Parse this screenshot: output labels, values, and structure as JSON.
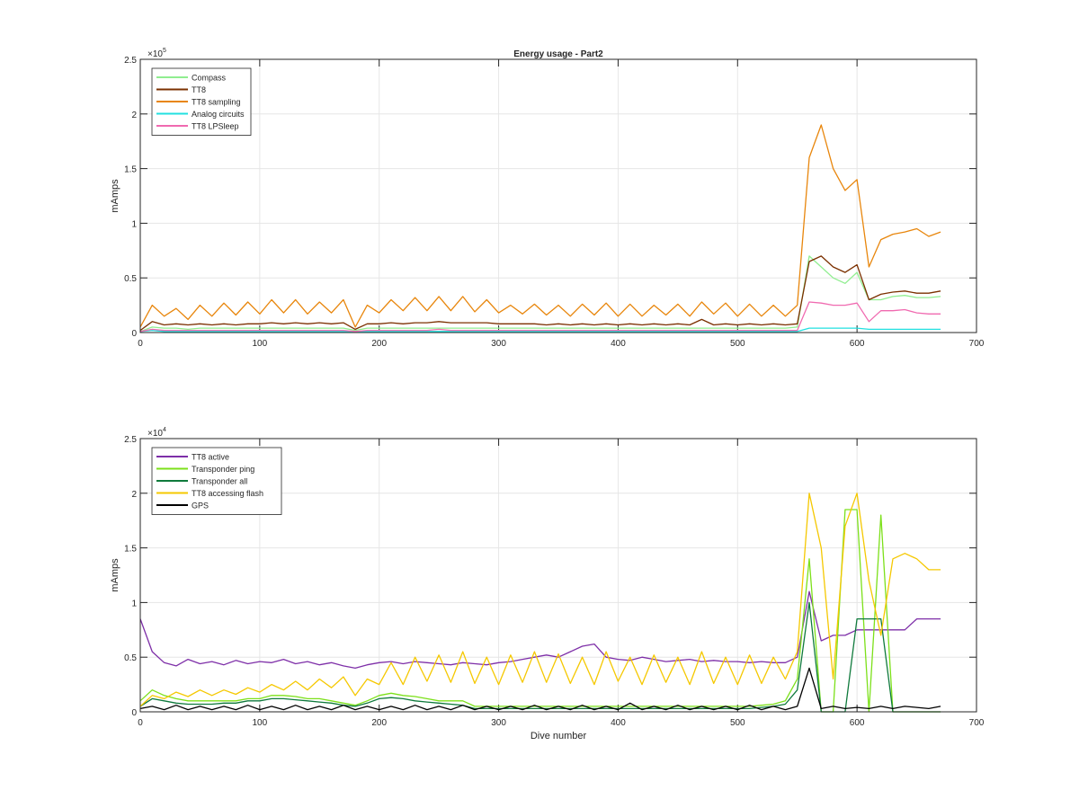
{
  "chart_data": [
    {
      "type": "line",
      "title": "Energy usage - Part2",
      "xlabel": "",
      "ylabel": "mAmps",
      "y_exponent_label": "×10",
      "y_exponent": "5",
      "xlim": [
        0,
        700
      ],
      "ylim": [
        0,
        2.5
      ],
      "xticks": [
        "0",
        "100",
        "200",
        "300",
        "400",
        "500",
        "600",
        "700"
      ],
      "yticks": [
        "0",
        "0.5",
        "1",
        "1.5",
        "2",
        "2.5"
      ],
      "grid": true,
      "legend_position": "top-left",
      "x": [
        0,
        10,
        20,
        30,
        40,
        50,
        60,
        70,
        80,
        90,
        100,
        110,
        120,
        130,
        140,
        150,
        160,
        170,
        180,
        190,
        200,
        210,
        220,
        230,
        240,
        250,
        260,
        270,
        280,
        290,
        300,
        310,
        320,
        330,
        340,
        350,
        360,
        370,
        380,
        390,
        400,
        410,
        420,
        430,
        440,
        450,
        460,
        470,
        480,
        490,
        500,
        510,
        520,
        530,
        540,
        550,
        560,
        570,
        580,
        590,
        600,
        610,
        620,
        630,
        640,
        650,
        660,
        670
      ],
      "series": [
        {
          "name": "Compass",
          "color": "#90ee90",
          "values": [
            0.01,
            0.05,
            0.04,
            0.04,
            0.03,
            0.04,
            0.04,
            0.04,
            0.04,
            0.04,
            0.04,
            0.04,
            0.04,
            0.04,
            0.04,
            0.04,
            0.04,
            0.04,
            0.02,
            0.04,
            0.04,
            0.04,
            0.04,
            0.04,
            0.04,
            0.04,
            0.04,
            0.04,
            0.04,
            0.04,
            0.04,
            0.04,
            0.04,
            0.04,
            0.04,
            0.04,
            0.04,
            0.04,
            0.04,
            0.04,
            0.04,
            0.04,
            0.04,
            0.04,
            0.04,
            0.04,
            0.04,
            0.04,
            0.04,
            0.04,
            0.04,
            0.04,
            0.04,
            0.04,
            0.04,
            0.05,
            0.7,
            0.6,
            0.5,
            0.45,
            0.55,
            0.3,
            0.3,
            0.33,
            0.34,
            0.32,
            0.32,
            0.33
          ]
        },
        {
          "name": "TT8",
          "color": "#7b3000",
          "values": [
            0.02,
            0.1,
            0.07,
            0.08,
            0.07,
            0.08,
            0.07,
            0.08,
            0.07,
            0.08,
            0.08,
            0.09,
            0.08,
            0.09,
            0.08,
            0.09,
            0.08,
            0.09,
            0.03,
            0.08,
            0.08,
            0.09,
            0.08,
            0.09,
            0.09,
            0.1,
            0.09,
            0.09,
            0.09,
            0.09,
            0.08,
            0.08,
            0.08,
            0.08,
            0.07,
            0.08,
            0.07,
            0.08,
            0.07,
            0.08,
            0.07,
            0.08,
            0.07,
            0.08,
            0.07,
            0.08,
            0.07,
            0.12,
            0.07,
            0.08,
            0.07,
            0.08,
            0.07,
            0.08,
            0.07,
            0.08,
            0.65,
            0.7,
            0.6,
            0.55,
            0.62,
            0.3,
            0.35,
            0.37,
            0.38,
            0.36,
            0.36,
            0.38
          ]
        },
        {
          "name": "TT8 sampling",
          "color": "#e8860c",
          "values": [
            0.05,
            0.25,
            0.15,
            0.22,
            0.12,
            0.25,
            0.15,
            0.27,
            0.16,
            0.28,
            0.17,
            0.3,
            0.18,
            0.3,
            0.17,
            0.28,
            0.18,
            0.3,
            0.05,
            0.25,
            0.18,
            0.3,
            0.2,
            0.32,
            0.2,
            0.33,
            0.2,
            0.33,
            0.19,
            0.3,
            0.18,
            0.25,
            0.17,
            0.26,
            0.16,
            0.25,
            0.15,
            0.26,
            0.16,
            0.27,
            0.15,
            0.26,
            0.15,
            0.25,
            0.16,
            0.26,
            0.15,
            0.28,
            0.17,
            0.27,
            0.15,
            0.26,
            0.15,
            0.25,
            0.15,
            0.25,
            1.6,
            1.9,
            1.5,
            1.3,
            1.4,
            0.6,
            0.85,
            0.9,
            0.92,
            0.95,
            0.88,
            0.92
          ]
        },
        {
          "name": "Analog circuits",
          "color": "#22e0e0",
          "values": [
            0.01,
            0.02,
            0.01,
            0.01,
            0.01,
            0.01,
            0.01,
            0.01,
            0.01,
            0.01,
            0.01,
            0.01,
            0.01,
            0.01,
            0.01,
            0.01,
            0.01,
            0.01,
            0.01,
            0.01,
            0.01,
            0.01,
            0.01,
            0.01,
            0.01,
            0.01,
            0.01,
            0.01,
            0.01,
            0.01,
            0.01,
            0.01,
            0.01,
            0.01,
            0.01,
            0.01,
            0.01,
            0.01,
            0.01,
            0.01,
            0.01,
            0.01,
            0.01,
            0.01,
            0.01,
            0.01,
            0.01,
            0.01,
            0.01,
            0.01,
            0.01,
            0.01,
            0.01,
            0.01,
            0.01,
            0.01,
            0.04,
            0.04,
            0.04,
            0.04,
            0.04,
            0.03,
            0.03,
            0.03,
            0.03,
            0.03,
            0.03,
            0.03
          ]
        },
        {
          "name": "TT8 LPSleep",
          "color": "#f06ab0",
          "values": [
            0.01,
            0.03,
            0.02,
            0.02,
            0.02,
            0.02,
            0.02,
            0.02,
            0.02,
            0.02,
            0.02,
            0.02,
            0.02,
            0.02,
            0.02,
            0.02,
            0.02,
            0.02,
            0.01,
            0.02,
            0.02,
            0.02,
            0.02,
            0.02,
            0.02,
            0.03,
            0.02,
            0.02,
            0.02,
            0.02,
            0.02,
            0.02,
            0.02,
            0.02,
            0.02,
            0.02,
            0.02,
            0.02,
            0.02,
            0.02,
            0.02,
            0.02,
            0.02,
            0.02,
            0.02,
            0.02,
            0.02,
            0.02,
            0.02,
            0.02,
            0.02,
            0.02,
            0.02,
            0.02,
            0.02,
            0.02,
            0.28,
            0.27,
            0.25,
            0.25,
            0.27,
            0.1,
            0.2,
            0.2,
            0.21,
            0.18,
            0.17,
            0.17
          ]
        }
      ]
    },
    {
      "type": "line",
      "title": "",
      "xlabel": "Dive number",
      "ylabel": "mAmps",
      "y_exponent_label": "×10",
      "y_exponent": "4",
      "xlim": [
        0,
        700
      ],
      "ylim": [
        0,
        2.5
      ],
      "xticks": [
        "0",
        "100",
        "200",
        "300",
        "400",
        "500",
        "600",
        "700"
      ],
      "yticks": [
        "0",
        "0.5",
        "1",
        "1.5",
        "2",
        "2.5"
      ],
      "grid": true,
      "legend_position": "top-left",
      "x": [
        0,
        10,
        20,
        30,
        40,
        50,
        60,
        70,
        80,
        90,
        100,
        110,
        120,
        130,
        140,
        150,
        160,
        170,
        180,
        190,
        200,
        210,
        220,
        230,
        240,
        250,
        260,
        270,
        280,
        290,
        300,
        310,
        320,
        330,
        340,
        350,
        360,
        370,
        380,
        390,
        400,
        410,
        420,
        430,
        440,
        450,
        460,
        470,
        480,
        490,
        500,
        510,
        520,
        530,
        540,
        550,
        560,
        570,
        580,
        590,
        600,
        610,
        620,
        630,
        640,
        650,
        660,
        670
      ],
      "series": [
        {
          "name": "TT8 active",
          "color": "#7e2fa8",
          "values": [
            0.85,
            0.55,
            0.45,
            0.42,
            0.48,
            0.44,
            0.46,
            0.43,
            0.47,
            0.44,
            0.46,
            0.45,
            0.48,
            0.44,
            0.46,
            0.43,
            0.45,
            0.42,
            0.4,
            0.43,
            0.45,
            0.46,
            0.44,
            0.46,
            0.45,
            0.44,
            0.43,
            0.45,
            0.44,
            0.43,
            0.45,
            0.46,
            0.48,
            0.5,
            0.52,
            0.5,
            0.55,
            0.6,
            0.62,
            0.5,
            0.48,
            0.47,
            0.5,
            0.48,
            0.46,
            0.47,
            0.48,
            0.46,
            0.47,
            0.46,
            0.46,
            0.45,
            0.46,
            0.45,
            0.45,
            0.5,
            1.1,
            0.65,
            0.7,
            0.7,
            0.75,
            0.75,
            0.75,
            0.75,
            0.75,
            0.85,
            0.85,
            0.85
          ]
        },
        {
          "name": "Transponder ping",
          "color": "#7ce01a",
          "values": [
            0.1,
            0.2,
            0.15,
            0.12,
            0.1,
            0.1,
            0.1,
            0.1,
            0.1,
            0.12,
            0.12,
            0.15,
            0.15,
            0.14,
            0.12,
            0.12,
            0.1,
            0.08,
            0.06,
            0.1,
            0.15,
            0.17,
            0.15,
            0.14,
            0.12,
            0.1,
            0.1,
            0.1,
            0.05,
            0.05,
            0.05,
            0.05,
            0.05,
            0.05,
            0.05,
            0.05,
            0.05,
            0.05,
            0.05,
            0.05,
            0.05,
            0.05,
            0.05,
            0.05,
            0.05,
            0.05,
            0.05,
            0.05,
            0.05,
            0.05,
            0.05,
            0.05,
            0.06,
            0.07,
            0.1,
            0.3,
            1.4,
            0.0,
            0.0,
            1.85,
            1.85,
            0.0,
            1.8,
            0.0,
            0.0,
            0.0,
            0.0,
            0.0
          ]
        },
        {
          "name": "Transponder all",
          "color": "#0f7a3c",
          "values": [
            0.05,
            0.12,
            0.1,
            0.08,
            0.07,
            0.07,
            0.07,
            0.08,
            0.08,
            0.1,
            0.1,
            0.12,
            0.12,
            0.11,
            0.1,
            0.09,
            0.08,
            0.06,
            0.05,
            0.08,
            0.12,
            0.13,
            0.12,
            0.1,
            0.09,
            0.08,
            0.07,
            0.06,
            0.03,
            0.03,
            0.03,
            0.03,
            0.03,
            0.03,
            0.03,
            0.03,
            0.03,
            0.03,
            0.03,
            0.03,
            0.03,
            0.03,
            0.03,
            0.03,
            0.03,
            0.03,
            0.03,
            0.03,
            0.03,
            0.03,
            0.03,
            0.03,
            0.04,
            0.05,
            0.07,
            0.2,
            1.0,
            0.0,
            0.0,
            0.0,
            0.85,
            0.85,
            0.85,
            0.0,
            0.0,
            0.0,
            0.0,
            0.0
          ]
        },
        {
          "name": "TT8 accessing flash",
          "color": "#f5c800",
          "values": [
            0.05,
            0.15,
            0.12,
            0.18,
            0.14,
            0.2,
            0.15,
            0.2,
            0.16,
            0.22,
            0.18,
            0.25,
            0.2,
            0.28,
            0.2,
            0.3,
            0.22,
            0.32,
            0.15,
            0.3,
            0.25,
            0.45,
            0.25,
            0.5,
            0.28,
            0.52,
            0.27,
            0.55,
            0.26,
            0.5,
            0.25,
            0.52,
            0.27,
            0.55,
            0.27,
            0.53,
            0.26,
            0.5,
            0.25,
            0.55,
            0.28,
            0.5,
            0.25,
            0.52,
            0.27,
            0.5,
            0.25,
            0.55,
            0.26,
            0.5,
            0.25,
            0.52,
            0.26,
            0.5,
            0.3,
            0.55,
            2.0,
            1.5,
            0.3,
            1.7,
            2.0,
            1.2,
            0.7,
            1.4,
            1.45,
            1.4,
            1.3,
            1.3
          ]
        },
        {
          "name": "GPS",
          "color": "#000000",
          "values": [
            0.03,
            0.05,
            0.02,
            0.06,
            0.02,
            0.05,
            0.02,
            0.05,
            0.02,
            0.06,
            0.02,
            0.05,
            0.02,
            0.06,
            0.02,
            0.05,
            0.02,
            0.06,
            0.02,
            0.05,
            0.02,
            0.05,
            0.02,
            0.06,
            0.02,
            0.05,
            0.02,
            0.06,
            0.02,
            0.05,
            0.02,
            0.05,
            0.02,
            0.06,
            0.02,
            0.05,
            0.02,
            0.06,
            0.02,
            0.05,
            0.02,
            0.08,
            0.02,
            0.05,
            0.02,
            0.06,
            0.02,
            0.05,
            0.02,
            0.05,
            0.02,
            0.06,
            0.02,
            0.05,
            0.02,
            0.05,
            0.4,
            0.03,
            0.05,
            0.03,
            0.04,
            0.03,
            0.05,
            0.03,
            0.05,
            0.04,
            0.03,
            0.05
          ]
        }
      ]
    }
  ]
}
